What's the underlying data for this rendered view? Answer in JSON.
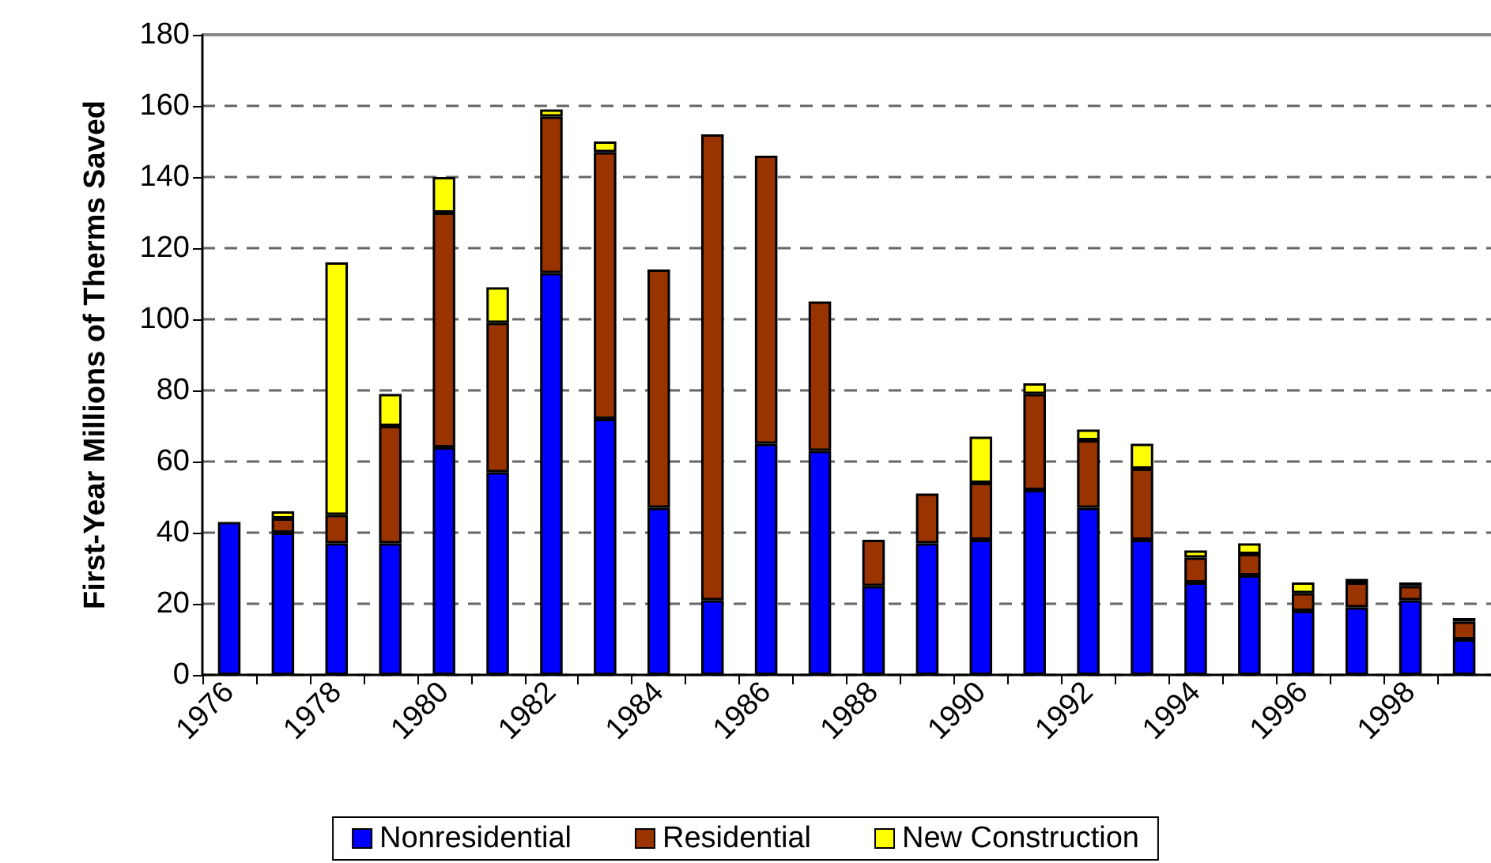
{
  "chart_data": {
    "type": "bar",
    "stacked": true,
    "ylabel": "First-Year Millions of Therms Saved",
    "categories": [
      "1976",
      null,
      "1978",
      null,
      "1980",
      null,
      "1982",
      null,
      "1984",
      null,
      "1986",
      null,
      "1988",
      null,
      "1990",
      null,
      "1992",
      null,
      "1994",
      null,
      "1996",
      null,
      "1998",
      null
    ],
    "series": [
      {
        "name": "Nonresidential",
        "color": "#0000ff",
        "values": [
          43,
          40,
          37,
          37,
          64,
          57,
          113,
          72,
          47,
          21,
          65,
          63,
          25,
          37,
          38,
          52,
          47,
          38,
          26,
          28,
          18,
          19,
          21,
          10
        ]
      },
      {
        "name": "Residential",
        "color": "#993300",
        "values": [
          0,
          4,
          8,
          33,
          66,
          42,
          44,
          75,
          67,
          131,
          81,
          42,
          13,
          14,
          16,
          27,
          19,
          20,
          7,
          6,
          5,
          7,
          4,
          5
        ]
      },
      {
        "name": "New Construction",
        "color": "#ffff00",
        "values": [
          0,
          2,
          71,
          9,
          10,
          10,
          2,
          3,
          0,
          0,
          0,
          0,
          0,
          0,
          13,
          3,
          3,
          7,
          2,
          3,
          3,
          1,
          1,
          1
        ]
      }
    ],
    "ylim": [
      0,
      180
    ],
    "yticks": [
      0,
      20,
      40,
      60,
      80,
      100,
      120,
      140,
      160,
      180
    ],
    "grid": "y",
    "legend": "bottom"
  }
}
